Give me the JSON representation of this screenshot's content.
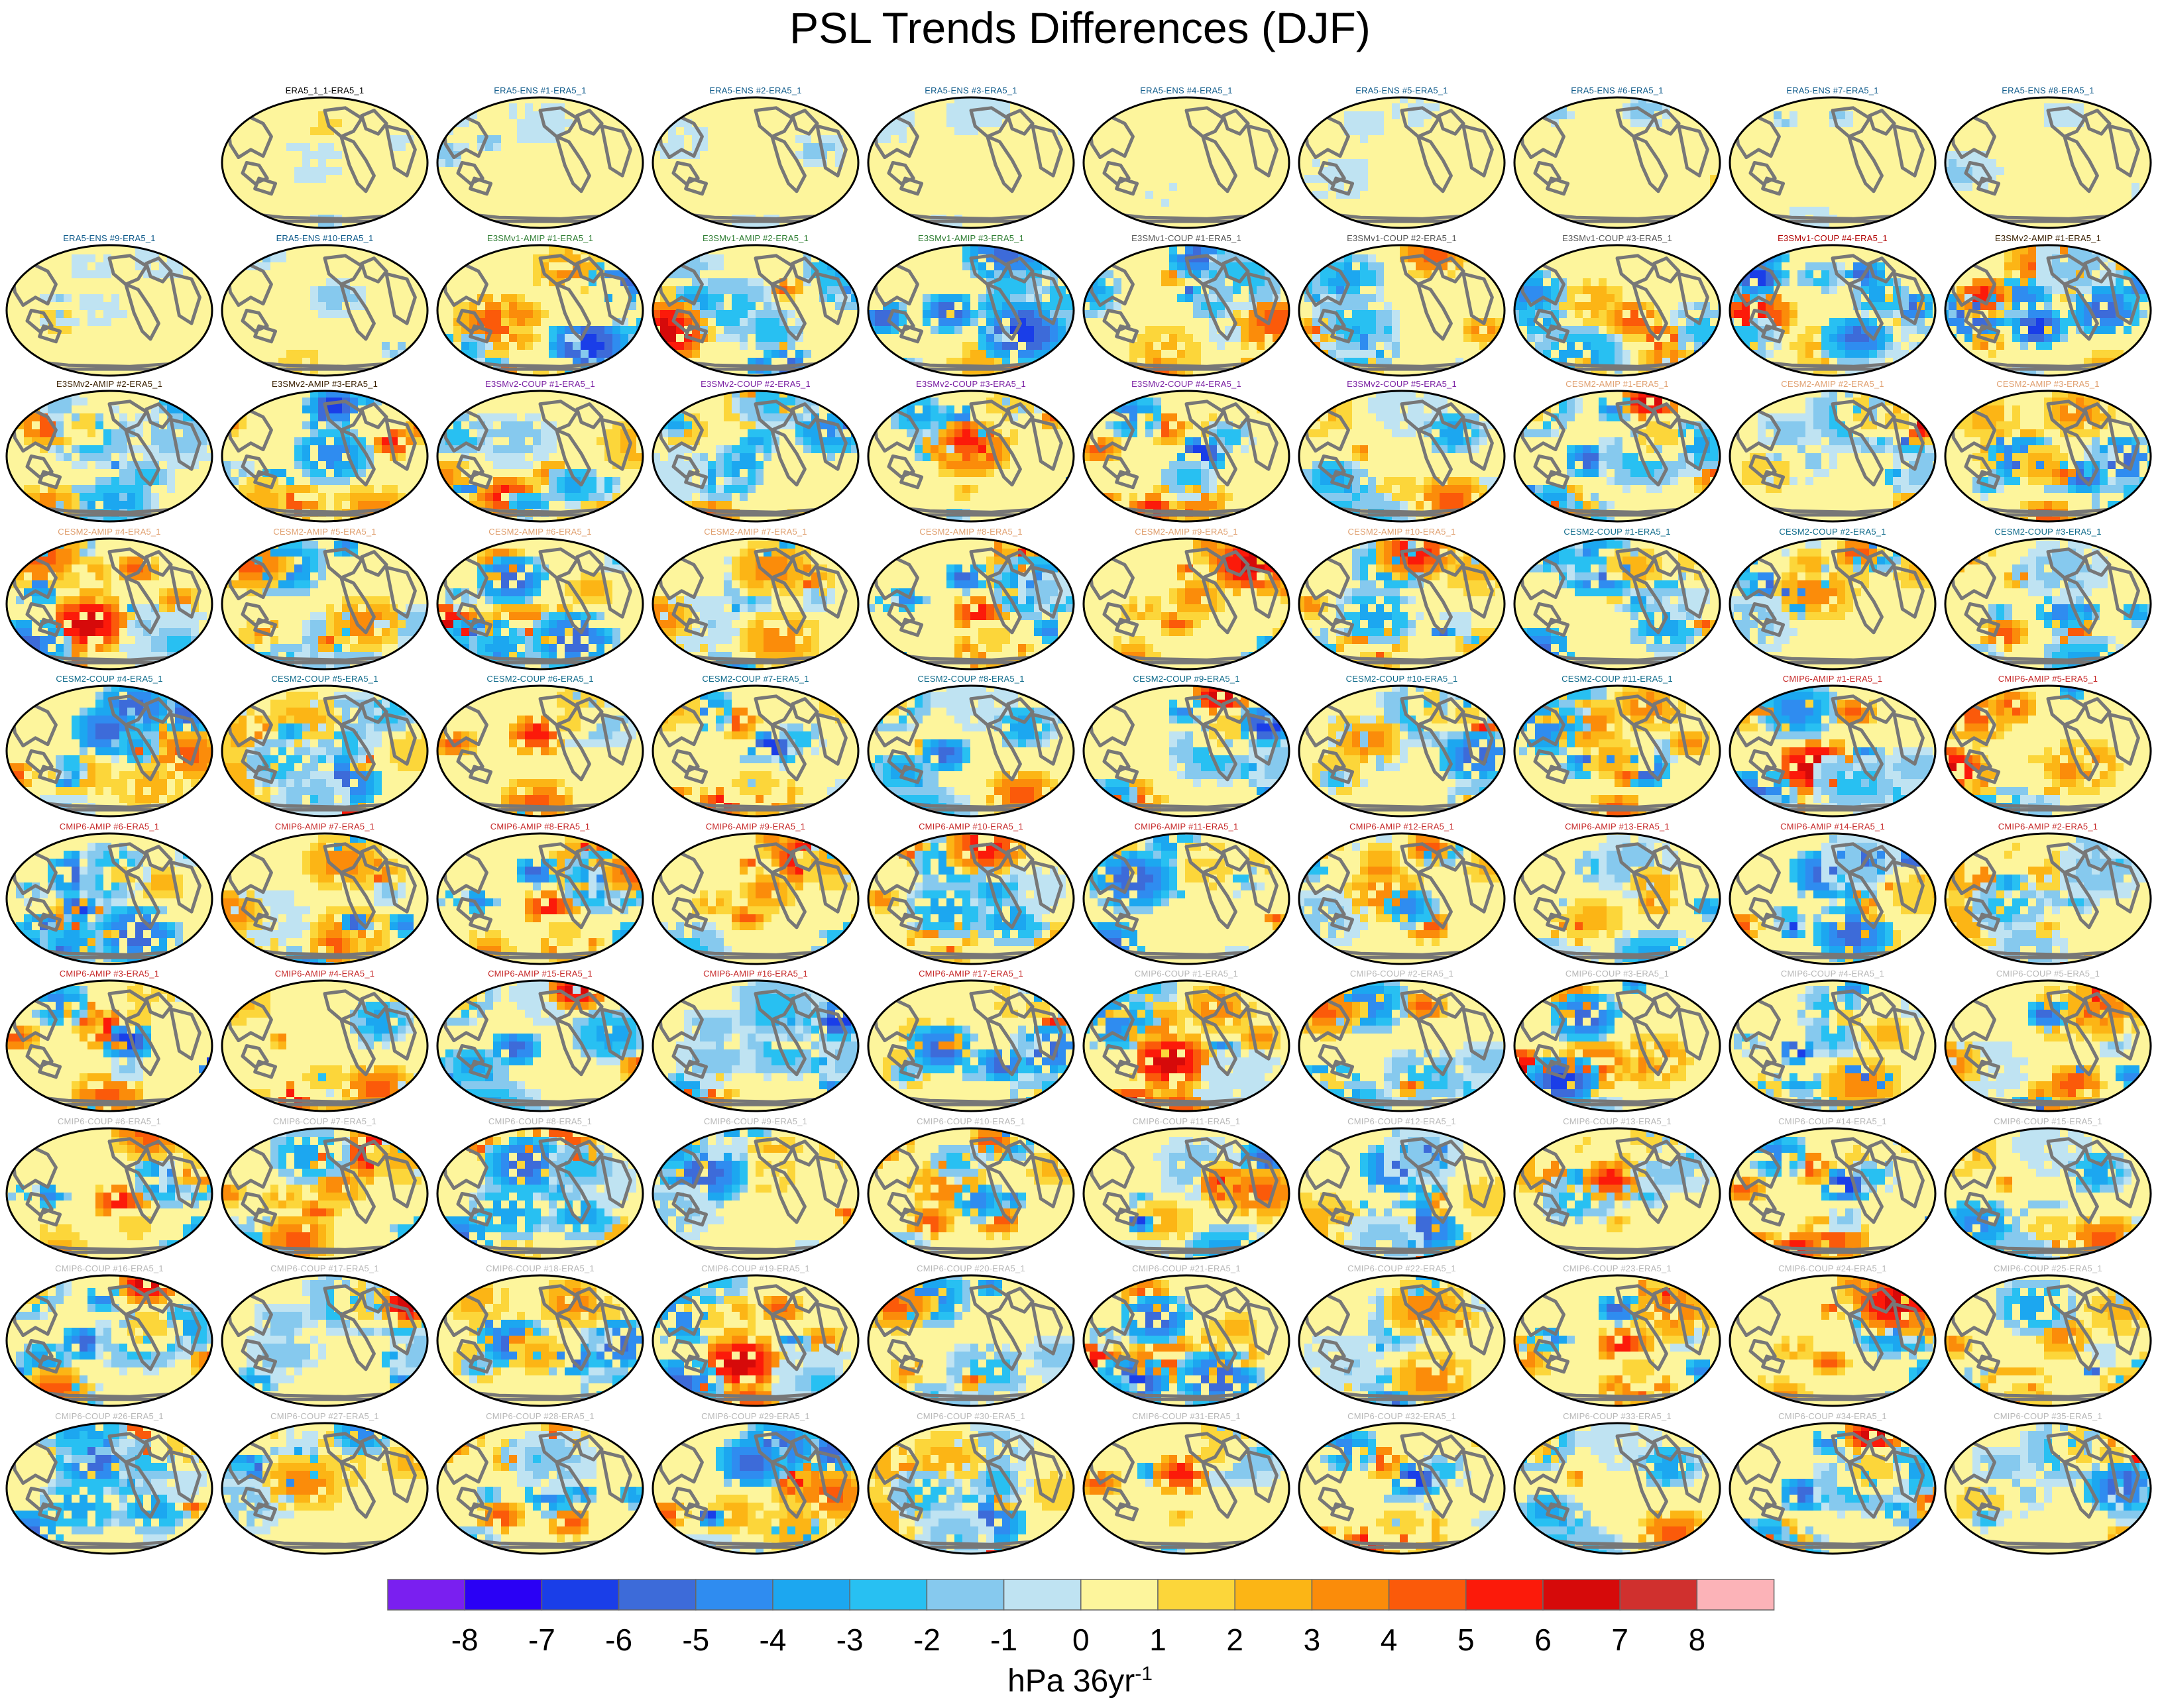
{
  "figure": {
    "title": "PSL Trends Differences (DJF)",
    "units_base": "hPa 36yr",
    "units_exponent": "-1"
  },
  "colorbar": {
    "ticks": [
      "-8",
      "-7",
      "-6",
      "-5",
      "-4",
      "-3",
      "-2",
      "-1",
      "0",
      "1",
      "2",
      "3",
      "4",
      "5",
      "6",
      "7",
      "8"
    ],
    "colors": [
      "#7a1ff0",
      "#2a00f5",
      "#1a3ee8",
      "#3d6bd9",
      "#2f8cf0",
      "#1ca7f0",
      "#28c0f2",
      "#86c9ee",
      "#bfe3f2",
      "#fdf59c",
      "#fcd63a",
      "#fcb515",
      "#fb8c0a",
      "#fb5a0a",
      "#fc1a0a",
      "#d60a0a",
      "#d0302e",
      "#fcb3b8"
    ]
  },
  "panels": [
    {
      "label": "ERA5_1_1-ERA5_1",
      "group": "era5self"
    },
    {
      "label": "ERA5-ENS   #1-ERA5_1",
      "group": "era5ens"
    },
    {
      "label": "ERA5-ENS   #2-ERA5_1",
      "group": "era5ens"
    },
    {
      "label": "ERA5-ENS   #3-ERA5_1",
      "group": "era5ens"
    },
    {
      "label": "ERA5-ENS   #4-ERA5_1",
      "group": "era5ens"
    },
    {
      "label": "ERA5-ENS   #5-ERA5_1",
      "group": "era5ens"
    },
    {
      "label": "ERA5-ENS   #6-ERA5_1",
      "group": "era5ens"
    },
    {
      "label": "ERA5-ENS   #7-ERA5_1",
      "group": "era5ens"
    },
    {
      "label": "ERA5-ENS   #8-ERA5_1",
      "group": "era5ens"
    },
    {
      "label": "ERA5-ENS   #9-ERA5_1",
      "group": "era5ens"
    },
    {
      "label": "ERA5-ENS   #10-ERA5_1",
      "group": "era5ens"
    },
    {
      "label": "E3SMv1-AMIP #1-ERA5_1",
      "group": "e3v1amip"
    },
    {
      "label": "E3SMv1-AMIP #2-ERA5_1",
      "group": "e3v1amip"
    },
    {
      "label": "E3SMv1-AMIP #3-ERA5_1",
      "group": "e3v1amip"
    },
    {
      "label": "E3SMv1-COUP #1-ERA5_1",
      "group": "e3v1coup"
    },
    {
      "label": "E3SMv1-COUP #2-ERA5_1",
      "group": "e3v1coup"
    },
    {
      "label": "E3SMv1-COUP #3-ERA5_1",
      "group": "e3v1coup"
    },
    {
      "label": "E3SMv1-COUP #4-ERA5_1",
      "group": "e3v1coup4"
    },
    {
      "label": "E3SMv2-AMIP #1-ERA5_1",
      "group": "e3v2amip"
    },
    {
      "label": "E3SMv2-AMIP #2-ERA5_1",
      "group": "e3v2amip"
    },
    {
      "label": "E3SMv2-AMIP #3-ERA5_1",
      "group": "e3v2amip"
    },
    {
      "label": "E3SMv2-COUP #1-ERA5_1",
      "group": "e3v2coup"
    },
    {
      "label": "E3SMv2-COUP #2-ERA5_1",
      "group": "e3v2coup"
    },
    {
      "label": "E3SMv2-COUP #3-ERA5_1",
      "group": "e3v2coup"
    },
    {
      "label": "E3SMv2-COUP #4-ERA5_1",
      "group": "e3v2coup"
    },
    {
      "label": "E3SMv2-COUP #5-ERA5_1",
      "group": "e3v2coup"
    },
    {
      "label": "CESM2-AMIP  #1-ERA5_1",
      "group": "cesmamip"
    },
    {
      "label": "CESM2-AMIP  #2-ERA5_1",
      "group": "cesmamip"
    },
    {
      "label": "CESM2-AMIP  #3-ERA5_1",
      "group": "cesmamip"
    },
    {
      "label": "CESM2-AMIP  #4-ERA5_1",
      "group": "cesmamip"
    },
    {
      "label": "CESM2-AMIP  #5-ERA5_1",
      "group": "cesmamip"
    },
    {
      "label": "CESM2-AMIP  #6-ERA5_1",
      "group": "cesmamip"
    },
    {
      "label": "CESM2-AMIP  #7-ERA5_1",
      "group": "cesmamip"
    },
    {
      "label": "CESM2-AMIP  #8-ERA5_1",
      "group": "cesmamip"
    },
    {
      "label": "CESM2-AMIP  #9-ERA5_1",
      "group": "cesmamip"
    },
    {
      "label": "CESM2-AMIP  #10-ERA5_1",
      "group": "cesmamip"
    },
    {
      "label": "CESM2-COUP  #1-ERA5_1",
      "group": "cesmcoup"
    },
    {
      "label": "CESM2-COUP  #2-ERA5_1",
      "group": "cesmcoup"
    },
    {
      "label": "CESM2-COUP  #3-ERA5_1",
      "group": "cesmcoup"
    },
    {
      "label": "CESM2-COUP  #4-ERA5_1",
      "group": "cesmcoup"
    },
    {
      "label": "CESM2-COUP  #5-ERA5_1",
      "group": "cesmcoup"
    },
    {
      "label": "CESM2-COUP  #6-ERA5_1",
      "group": "cesmcoup"
    },
    {
      "label": "CESM2-COUP  #7-ERA5_1",
      "group": "cesmcoup"
    },
    {
      "label": "CESM2-COUP  #8-ERA5_1",
      "group": "cesmcoup"
    },
    {
      "label": "CESM2-COUP  #9-ERA5_1",
      "group": "cesmcoup"
    },
    {
      "label": "CESM2-COUP  #10-ERA5_1",
      "group": "cesmcoup"
    },
    {
      "label": "CESM2-COUP  #11-ERA5_1",
      "group": "cesmcoup"
    },
    {
      "label": "CMIP6-AMIP  #1-ERA5_1",
      "group": "cmipamip"
    },
    {
      "label": "CMIP6-AMIP  #5-ERA5_1",
      "group": "cmipamip"
    },
    {
      "label": "CMIP6-AMIP  #6-ERA5_1",
      "group": "cmipamip"
    },
    {
      "label": "CMIP6-AMIP  #7-ERA5_1",
      "group": "cmipamip"
    },
    {
      "label": "CMIP6-AMIP  #8-ERA5_1",
      "group": "cmipamip"
    },
    {
      "label": "CMIP6-AMIP  #9-ERA5_1",
      "group": "cmipamip"
    },
    {
      "label": "CMIP6-AMIP  #10-ERA5_1",
      "group": "cmipamip"
    },
    {
      "label": "CMIP6-AMIP  #11-ERA5_1",
      "group": "cmipamip"
    },
    {
      "label": "CMIP6-AMIP  #12-ERA5_1",
      "group": "cmipamip"
    },
    {
      "label": "CMIP6-AMIP  #13-ERA5_1",
      "group": "cmipamip"
    },
    {
      "label": "CMIP6-AMIP  #14-ERA5_1",
      "group": "cmipamip"
    },
    {
      "label": "CMIP6-AMIP  #2-ERA5_1",
      "group": "cmipamip"
    },
    {
      "label": "CMIP6-AMIP  #3-ERA5_1",
      "group": "cmipamip"
    },
    {
      "label": "CMIP6-AMIP  #4-ERA5_1",
      "group": "cmipamip"
    },
    {
      "label": "CMIP6-AMIP  #15-ERA5_1",
      "group": "cmipamip"
    },
    {
      "label": "CMIP6-AMIP  #16-ERA5_1",
      "group": "cmipamip"
    },
    {
      "label": "CMIP6-AMIP  #17-ERA5_1",
      "group": "cmipamip"
    },
    {
      "label": "CMIP6-COUP  #1-ERA5_1",
      "group": "cmipcoup"
    },
    {
      "label": "CMIP6-COUP  #2-ERA5_1",
      "group": "cmipcoup"
    },
    {
      "label": "CMIP6-COUP  #3-ERA5_1",
      "group": "cmipcoup"
    },
    {
      "label": "CMIP6-COUP  #4-ERA5_1",
      "group": "cmipcoup"
    },
    {
      "label": "CMIP6-COUP  #5-ERA5_1",
      "group": "cmipcoup"
    },
    {
      "label": "CMIP6-COUP  #6-ERA5_1",
      "group": "cmipcoup"
    },
    {
      "label": "CMIP6-COUP  #7-ERA5_1",
      "group": "cmipcoup"
    },
    {
      "label": "CMIP6-COUP  #8-ERA5_1",
      "group": "cmipcoup"
    },
    {
      "label": "CMIP6-COUP  #9-ERA5_1",
      "group": "cmipcoup"
    },
    {
      "label": "CMIP6-COUP  #10-ERA5_1",
      "group": "cmipcoup"
    },
    {
      "label": "CMIP6-COUP  #11-ERA5_1",
      "group": "cmipcoup"
    },
    {
      "label": "CMIP6-COUP  #12-ERA5_1",
      "group": "cmipcoup"
    },
    {
      "label": "CMIP6-COUP  #13-ERA5_1",
      "group": "cmipcoup"
    },
    {
      "label": "CMIP6-COUP  #14-ERA5_1",
      "group": "cmipcoup"
    },
    {
      "label": "CMIP6-COUP  #15-ERA5_1",
      "group": "cmipcoup"
    },
    {
      "label": "CMIP6-COUP  #16-ERA5_1",
      "group": "cmipcoup"
    },
    {
      "label": "CMIP6-COUP  #17-ERA5_1",
      "group": "cmipcoup"
    },
    {
      "label": "CMIP6-COUP  #18-ERA5_1",
      "group": "cmipcoup"
    },
    {
      "label": "CMIP6-COUP  #19-ERA5_1",
      "group": "cmipcoup"
    },
    {
      "label": "CMIP6-COUP  #20-ERA5_1",
      "group": "cmipcoup"
    },
    {
      "label": "CMIP6-COUP  #21-ERA5_1",
      "group": "cmipcoup"
    },
    {
      "label": "CMIP6-COUP  #22-ERA5_1",
      "group": "cmipcoup"
    },
    {
      "label": "CMIP6-COUP  #23-ERA5_1",
      "group": "cmipcoup"
    },
    {
      "label": "CMIP6-COUP  #24-ERA5_1",
      "group": "cmipcoup"
    },
    {
      "label": "CMIP6-COUP  #25-ERA5_1",
      "group": "cmipcoup"
    },
    {
      "label": "CMIP6-COUP  #26-ERA5_1",
      "group": "cmipcoup"
    },
    {
      "label": "CMIP6-COUP  #27-ERA5_1",
      "group": "cmipcoup"
    },
    {
      "label": "CMIP6-COUP  #28-ERA5_1",
      "group": "cmipcoup"
    },
    {
      "label": "CMIP6-COUP  #29-ERA5_1",
      "group": "cmipcoup"
    },
    {
      "label": "CMIP6-COUP  #30-ERA5_1",
      "group": "cmipcoup"
    },
    {
      "label": "CMIP6-COUP  #31-ERA5_1",
      "group": "cmipcoup"
    },
    {
      "label": "CMIP6-COUP  #32-ERA5_1",
      "group": "cmipcoup"
    },
    {
      "label": "CMIP6-COUP  #33-ERA5_1",
      "group": "cmipcoup"
    },
    {
      "label": "CMIP6-COUP  #34-ERA5_1",
      "group": "cmipcoup"
    },
    {
      "label": "CMIP6-COUP  #35-ERA5_1",
      "group": "cmipcoup"
    }
  ],
  "label_colors": {
    "era5self": "#000000",
    "era5ens": "#0e5a8a",
    "e3v1amip": "#2e7d32",
    "e3v1coup": "#555555",
    "e3v1coup4": "#b00000",
    "e3v2amip": "#3a2000",
    "e3v2coup": "#7a1fa2",
    "cesmamip": "#e0a070",
    "cesmcoup": "#0e6a8a",
    "cmipamip": "#c62828",
    "cmipcoup": "#b8b8b8"
  },
  "map_colors": {
    "ocean_neutral": "#fdf59c",
    "land": "#777777",
    "border": "#000000"
  }
}
